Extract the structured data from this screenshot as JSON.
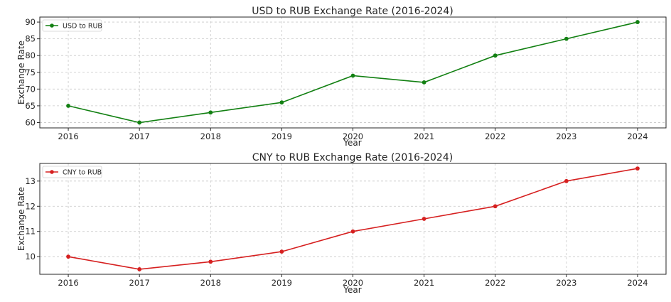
{
  "chart_data": [
    {
      "type": "line",
      "title": "USD to RUB Exchange Rate (2016-2024)",
      "xlabel": "Year",
      "ylabel": "Exchange Rate",
      "xlim": [
        2015.6,
        2024.4
      ],
      "ylim": [
        58.4,
        91.5
      ],
      "yticks": [
        60,
        65,
        70,
        75,
        80,
        85,
        90
      ],
      "grid": true,
      "legend_position": "top-left",
      "series": [
        {
          "name": "USD to RUB",
          "color": "#128012",
          "x": [
            2016,
            2017,
            2018,
            2019,
            2020,
            2021,
            2022,
            2023,
            2024
          ],
          "values": [
            65,
            60,
            63,
            66,
            74,
            72,
            80,
            85,
            90
          ]
        }
      ]
    },
    {
      "type": "line",
      "title": "CNY to RUB Exchange Rate (2016-2024)",
      "xlabel": "Year",
      "ylabel": "Exchange Rate",
      "xlim": [
        2015.6,
        2024.4
      ],
      "ylim": [
        9.3,
        13.7
      ],
      "yticks": [
        10,
        11,
        12,
        13
      ],
      "grid": true,
      "legend_position": "top-left",
      "series": [
        {
          "name": "CNY to RUB",
          "color": "#d62020",
          "x": [
            2016,
            2017,
            2018,
            2019,
            2020,
            2021,
            2022,
            2023,
            2024
          ],
          "values": [
            10,
            9.5,
            9.8,
            10.2,
            11,
            11.5,
            12,
            13,
            13.5
          ]
        }
      ]
    }
  ]
}
